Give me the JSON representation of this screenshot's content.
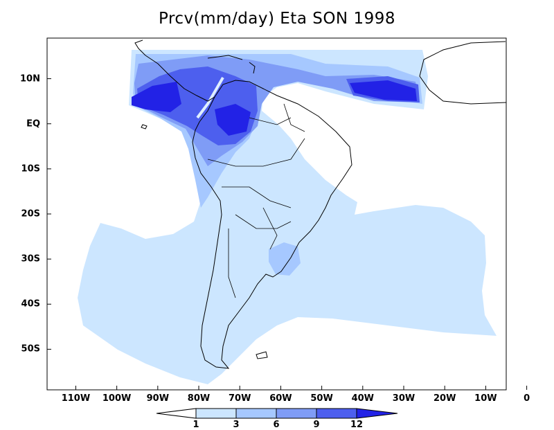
{
  "title": "Prcv(mm/day) Eta SON 1998",
  "axes": {
    "x_ticks": [
      {
        "label": "110W",
        "lon": -110
      },
      {
        "label": "100W",
        "lon": -100
      },
      {
        "label": "90W",
        "lon": -90
      },
      {
        "label": "80W",
        "lon": -80
      },
      {
        "label": "70W",
        "lon": -70
      },
      {
        "label": "60W",
        "lon": -60
      },
      {
        "label": "50W",
        "lon": -50
      },
      {
        "label": "40W",
        "lon": -40
      },
      {
        "label": "30W",
        "lon": -30
      },
      {
        "label": "20W",
        "lon": -20
      },
      {
        "label": "10W",
        "lon": -10
      },
      {
        "label": "0",
        "lon": 0
      }
    ],
    "y_ticks": [
      {
        "label": "10N",
        "lat": 10
      },
      {
        "label": "EQ",
        "lat": 0
      },
      {
        "label": "10S",
        "lat": -10
      },
      {
        "label": "20S",
        "lat": -20
      },
      {
        "label": "30S",
        "lat": -30
      },
      {
        "label": "40S",
        "lat": -40
      },
      {
        "label": "50S",
        "lat": -50
      }
    ],
    "lon_range": [
      -117,
      -5
    ],
    "lat_range": [
      -59,
      19
    ]
  },
  "colorbar": {
    "levels": [
      "1",
      "3",
      "6",
      "9",
      "12"
    ],
    "colors": [
      "#ffffff",
      "#cce6ff",
      "#a6c8ff",
      "#7f9cf6",
      "#4d5fee",
      "#2222e6"
    ]
  },
  "colors": {
    "land_outline": "#000000",
    "frame": "#000000"
  }
}
